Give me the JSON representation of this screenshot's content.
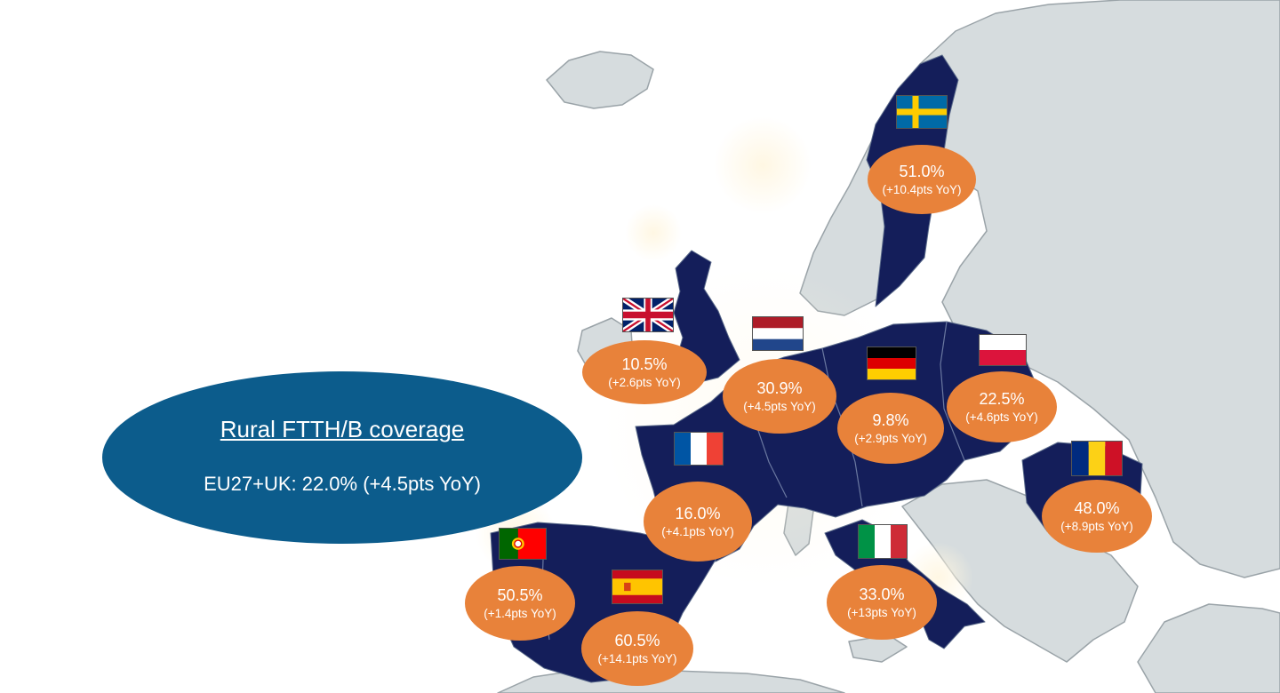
{
  "summary": {
    "title": "Rural FTTH/B coverage",
    "value": "EU27+UK: 22.0% (+4.5pts YoY)"
  },
  "colors": {
    "land": "#d6dcde",
    "highlight": "#141e5a",
    "bubble": "#e8823a",
    "summary": "#0c5c8c"
  },
  "countries": [
    {
      "id": "sweden",
      "flag": "sweden-flag-icon",
      "value": "51.0%",
      "change": "(+10.4pts YoY)"
    },
    {
      "id": "uk",
      "flag": "union-jack-flag-icon",
      "value": "10.5%",
      "change": "(+2.6pts YoY)"
    },
    {
      "id": "netherlands",
      "flag": "netherlands-flag-icon",
      "value": "30.9%",
      "change": "(+4.5pts YoY)"
    },
    {
      "id": "germany",
      "flag": "germany-flag-icon",
      "value": "9.8%",
      "change": "(+2.9pts YoY)"
    },
    {
      "id": "poland",
      "flag": "poland-flag-icon",
      "value": "22.5%",
      "change": "(+4.6pts YoY)"
    },
    {
      "id": "france",
      "flag": "france-flag-icon",
      "value": "16.0%",
      "change": "(+4.1pts YoY)"
    },
    {
      "id": "romania",
      "flag": "romania-flag-icon",
      "value": "48.0%",
      "change": "(+8.9pts YoY)"
    },
    {
      "id": "portugal",
      "flag": "portugal-flag-icon",
      "value": "50.5%",
      "change": "(+1.4pts YoY)"
    },
    {
      "id": "spain",
      "flag": "spain-flag-icon",
      "value": "60.5%",
      "change": "(+14.1pts YoY)"
    },
    {
      "id": "italy",
      "flag": "italy-flag-icon",
      "value": "33.0%",
      "change": "(+13pts YoY)"
    }
  ]
}
